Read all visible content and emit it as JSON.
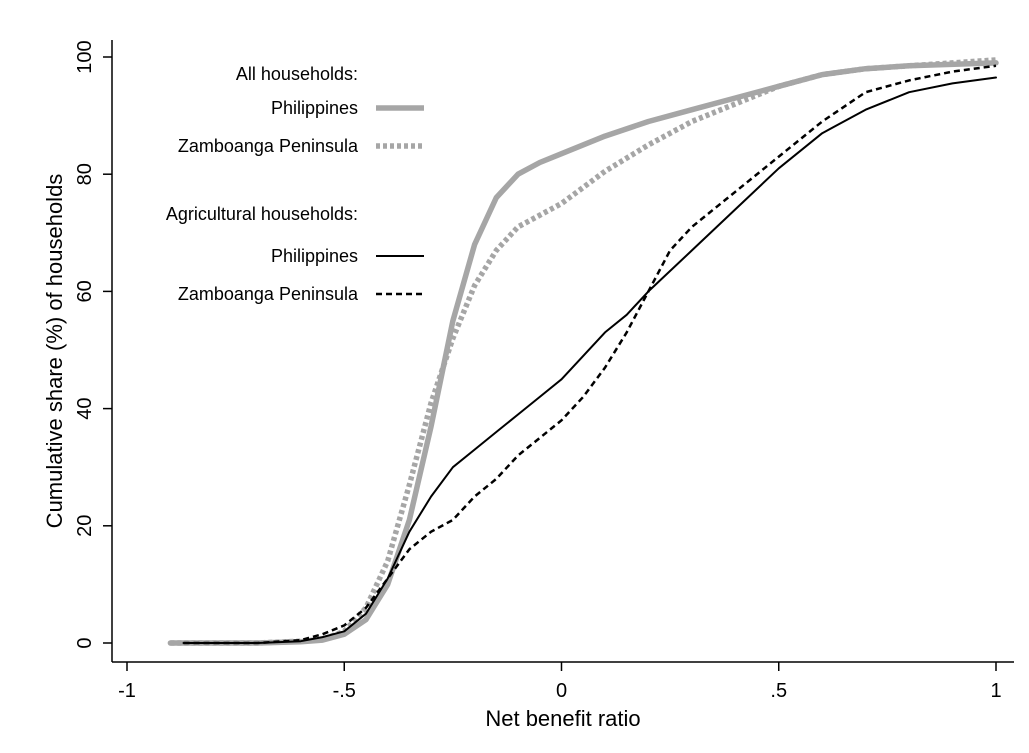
{
  "chart_data": {
    "type": "line",
    "xlabel": "Net benefit ratio",
    "ylabel": "Cumulative share (%) of households",
    "xlim": [
      -1,
      1
    ],
    "ylim": [
      0,
      100
    ],
    "xticks": [
      {
        "value": -1,
        "label": "-1"
      },
      {
        "value": -0.5,
        "label": "-.5"
      },
      {
        "value": 0,
        "label": "0"
      },
      {
        "value": 0.5,
        "label": ".5"
      },
      {
        "value": 1,
        "label": "1"
      }
    ],
    "yticks": [
      {
        "value": 0,
        "label": "0"
      },
      {
        "value": 20,
        "label": "20"
      },
      {
        "value": 40,
        "label": "40"
      },
      {
        "value": 60,
        "label": "60"
      },
      {
        "value": 80,
        "label": "80"
      },
      {
        "value": 100,
        "label": "100"
      }
    ],
    "grid": false,
    "legend_position": "top-left",
    "legend_groups": [
      {
        "title": "All households:",
        "series": [
          0,
          1
        ]
      },
      {
        "title": "Agricultural households:",
        "series": [
          2,
          3
        ]
      }
    ],
    "series": [
      {
        "name": "Philippines",
        "group": "All households",
        "color": "#a6a6a6",
        "style": "solid-thick",
        "x": [
          -0.9,
          -0.8,
          -0.7,
          -0.6,
          -0.55,
          -0.5,
          -0.45,
          -0.4,
          -0.35,
          -0.3,
          -0.25,
          -0.2,
          -0.15,
          -0.1,
          -0.05,
          0,
          0.1,
          0.2,
          0.3,
          0.4,
          0.5,
          0.6,
          0.7,
          0.8,
          1
        ],
        "y": [
          0,
          0,
          0,
          0.2,
          0.5,
          1.5,
          4,
          10,
          21,
          37,
          55,
          68,
          76,
          80,
          82,
          83.5,
          86.5,
          89,
          91,
          93,
          95,
          97,
          98,
          98.5,
          99
        ]
      },
      {
        "name": "Zamboanga Peninsula",
        "group": "All households",
        "color": "#a6a6a6",
        "style": "dotted-thick",
        "x": [
          -0.9,
          -0.8,
          -0.7,
          -0.6,
          -0.55,
          -0.5,
          -0.45,
          -0.4,
          -0.35,
          -0.3,
          -0.25,
          -0.2,
          -0.15,
          -0.1,
          -0.05,
          0,
          0.1,
          0.2,
          0.3,
          0.4,
          0.5,
          0.6,
          0.7,
          0.8,
          0.9,
          1
        ],
        "y": [
          0,
          0,
          0,
          0.3,
          0.6,
          2,
          6,
          14,
          27,
          41,
          52,
          61,
          67,
          71,
          73,
          75,
          80.5,
          85,
          89,
          92,
          95,
          97,
          98,
          98.5,
          99,
          99.5
        ]
      },
      {
        "name": "Philippines",
        "group": "Agricultural households",
        "color": "#000000",
        "style": "solid-thin",
        "x": [
          -0.87,
          -0.7,
          -0.6,
          -0.55,
          -0.5,
          -0.45,
          -0.4,
          -0.35,
          -0.3,
          -0.25,
          -0.2,
          -0.15,
          -0.1,
          -0.05,
          0,
          0.05,
          0.1,
          0.15,
          0.2,
          0.3,
          0.4,
          0.5,
          0.6,
          0.7,
          0.8,
          0.9,
          1
        ],
        "y": [
          0,
          0,
          0.3,
          1,
          2,
          5,
          11,
          19,
          25,
          30,
          33,
          36,
          39,
          42,
          45,
          49,
          53,
          56,
          60,
          67,
          74,
          81,
          87,
          91,
          94,
          95.5,
          96.5
        ]
      },
      {
        "name": "Zamboanga Peninsula",
        "group": "Agricultural households",
        "color": "#000000",
        "style": "dashed-thin",
        "x": [
          -0.87,
          -0.7,
          -0.6,
          -0.55,
          -0.5,
          -0.45,
          -0.4,
          -0.35,
          -0.3,
          -0.25,
          -0.2,
          -0.15,
          -0.1,
          -0.05,
          0,
          0.05,
          0.1,
          0.15,
          0.2,
          0.25,
          0.3,
          0.4,
          0.5,
          0.6,
          0.7,
          0.8,
          0.9,
          1
        ],
        "y": [
          0,
          0,
          0.5,
          1.5,
          3,
          6,
          11,
          16,
          19,
          21,
          25,
          28,
          32,
          35,
          38,
          42,
          47,
          53,
          60,
          67,
          71,
          77,
          83,
          89,
          94,
          96,
          97.5,
          98.5
        ]
      }
    ]
  }
}
